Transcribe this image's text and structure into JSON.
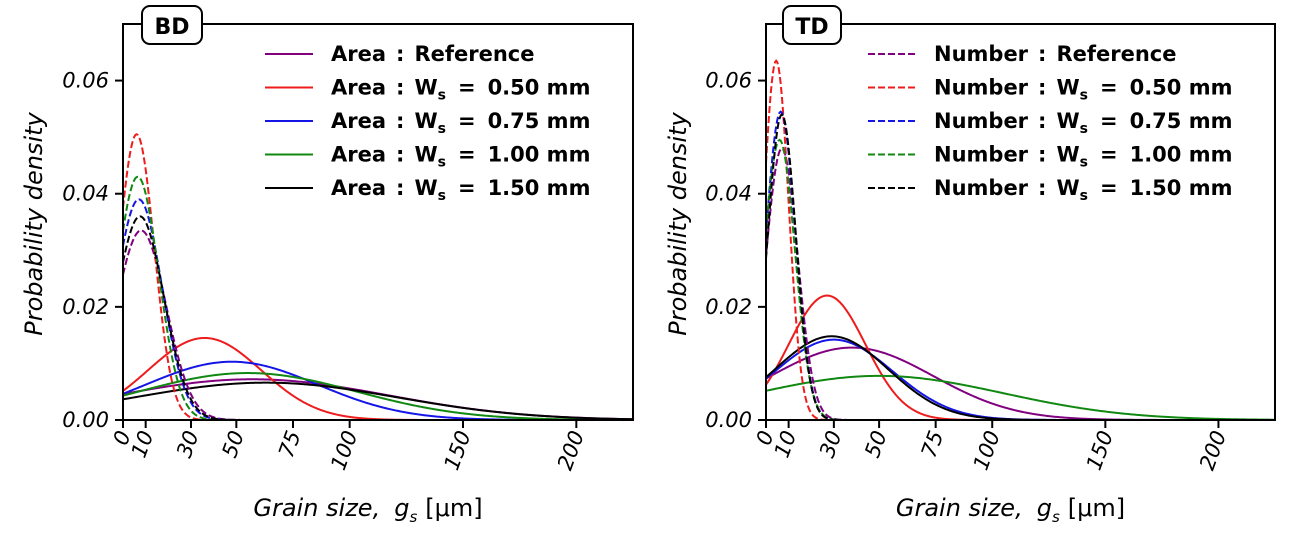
{
  "chart_data": [
    {
      "type": "line",
      "panel_label": "BD",
      "xlabel": "Grain size,",
      "xlabel_symbol": "g",
      "xlabel_subscript": "s",
      "xlabel_unit": "[μm]",
      "ylabel": "Probability density",
      "xlim": [
        0,
        225
      ],
      "ylim": [
        0,
        0.07
      ],
      "xticks": [
        0,
        10,
        30,
        50,
        75,
        100,
        150,
        200
      ],
      "xtick_labels": [
        "0",
        "10",
        "30",
        "50",
        "75",
        "100",
        "150",
        "200"
      ],
      "yticks": [
        0,
        0.02,
        0.04,
        0.06
      ],
      "ytick_labels": [
        "0.00",
        "0.02",
        "0.04",
        "0.06"
      ],
      "legend_position": "top-right",
      "legend": [
        {
          "name": "Area",
          "sep": ":",
          "label": "Reference",
          "sym": "",
          "sub": "",
          "eq": "",
          "val": "",
          "color": "#800080",
          "dash": "solid"
        },
        {
          "name": "Area",
          "sep": ":",
          "label": "",
          "sym": "W",
          "sub": "s",
          "eq": "=",
          "val": "0.50 mm",
          "color": "#ee1c1c",
          "dash": "solid"
        },
        {
          "name": "Area",
          "sep": ":",
          "label": "",
          "sym": "W",
          "sub": "s",
          "eq": "=",
          "val": "0.75 mm",
          "color": "#1515e6",
          "dash": "solid"
        },
        {
          "name": "Area",
          "sep": ":",
          "label": "",
          "sym": "W",
          "sub": "s",
          "eq": "=",
          "val": "1.00 mm",
          "color": "#118811",
          "dash": "solid"
        },
        {
          "name": "Area",
          "sep": ":",
          "label": "",
          "sym": "W",
          "sub": "s",
          "eq": "=",
          "val": "1.50 mm",
          "color": "#000000",
          "dash": "solid"
        }
      ],
      "series": [
        {
          "name": "Area : Reference",
          "style": "solid",
          "color": "#800080",
          "mu": 57,
          "sigma": 60,
          "peak": 0.0072
        },
        {
          "name": "Area : Ws = 0.50 mm",
          "style": "solid",
          "color": "#ee1c1c",
          "mu": 36,
          "sigma": 25,
          "peak": 0.0145
        },
        {
          "name": "Area : Ws = 0.75 mm",
          "style": "solid",
          "color": "#1515e6",
          "mu": 48,
          "sigma": 38,
          "peak": 0.0103
        },
        {
          "name": "Area : Ws = 1.00 mm",
          "style": "solid",
          "color": "#118811",
          "mu": 55,
          "sigma": 48,
          "peak": 0.0083
        },
        {
          "name": "Area : Ws = 1.50 mm",
          "style": "solid",
          "color": "#000000",
          "mu": 63,
          "sigma": 58,
          "peak": 0.0066
        },
        {
          "name": "Number : Reference",
          "style": "dashed",
          "color": "#800080",
          "mu": 8,
          "sigma": 11,
          "peak": 0.0335
        },
        {
          "name": "Number : Ws = 0.50 mm",
          "style": "dashed",
          "color": "#ee1c1c",
          "mu": 6,
          "sigma": 7.8,
          "peak": 0.0505
        },
        {
          "name": "Number : Ws = 0.75 mm",
          "style": "dashed",
          "color": "#1515e6",
          "mu": 7,
          "sigma": 10.2,
          "peak": 0.039
        },
        {
          "name": "Number : Ws = 1.00 mm",
          "style": "dashed",
          "color": "#118811",
          "mu": 6.5,
          "sigma": 9.2,
          "peak": 0.043
        },
        {
          "name": "Number : Ws = 1.50 mm",
          "style": "dashed",
          "color": "#000000",
          "mu": 7.5,
          "sigma": 10.5,
          "peak": 0.036
        }
      ]
    },
    {
      "type": "line",
      "panel_label": "TD",
      "xlabel": "Grain size,",
      "xlabel_symbol": "g",
      "xlabel_subscript": "s",
      "xlabel_unit": "[μm]",
      "ylabel": "Probability density",
      "xlim": [
        0,
        225
      ],
      "ylim": [
        0,
        0.07
      ],
      "xticks": [
        0,
        10,
        30,
        50,
        75,
        100,
        150,
        200
      ],
      "xtick_labels": [
        "0",
        "10",
        "30",
        "50",
        "75",
        "100",
        "150",
        "200"
      ],
      "yticks": [
        0,
        0.02,
        0.04,
        0.06
      ],
      "ytick_labels": [
        "0.00",
        "0.02",
        "0.04",
        "0.06"
      ],
      "legend_position": "top-right",
      "legend": [
        {
          "name": "Number",
          "sep": ":",
          "label": "Reference",
          "sym": "",
          "sub": "",
          "eq": "",
          "val": "",
          "color": "#800080",
          "dash": "dashed"
        },
        {
          "name": "Number",
          "sep": ":",
          "label": "",
          "sym": "W",
          "sub": "s",
          "eq": "=",
          "val": "0.50 mm",
          "color": "#ee1c1c",
          "dash": "dashed"
        },
        {
          "name": "Number",
          "sep": ":",
          "label": "",
          "sym": "W",
          "sub": "s",
          "eq": "=",
          "val": "0.75 mm",
          "color": "#1515e6",
          "dash": "dashed"
        },
        {
          "name": "Number",
          "sep": ":",
          "label": "",
          "sym": "W",
          "sub": "s",
          "eq": "=",
          "val": "1.00 mm",
          "color": "#118811",
          "dash": "dashed"
        },
        {
          "name": "Number",
          "sep": ":",
          "label": "",
          "sym": "W",
          "sub": "s",
          "eq": "=",
          "val": "1.50 mm",
          "color": "#000000",
          "dash": "dashed"
        }
      ],
      "series": [
        {
          "name": "Area : Reference",
          "style": "solid",
          "color": "#800080",
          "mu": 38,
          "sigma": 36,
          "peak": 0.0128
        },
        {
          "name": "Area : Ws = 0.50 mm",
          "style": "solid",
          "color": "#ee1c1c",
          "mu": 27,
          "sigma": 17,
          "peak": 0.022
        },
        {
          "name": "Area : Ws = 0.75 mm",
          "style": "solid",
          "color": "#1515e6",
          "mu": 30,
          "sigma": 26,
          "peak": 0.0142
        },
        {
          "name": "Area : Ws = 1.00 mm",
          "style": "solid",
          "color": "#118811",
          "mu": 50,
          "sigma": 55,
          "peak": 0.0078
        },
        {
          "name": "Area : Ws = 1.50 mm",
          "style": "solid",
          "color": "#000000",
          "mu": 29,
          "sigma": 25,
          "peak": 0.0148
        },
        {
          "name": "Number : Reference",
          "style": "dashed",
          "color": "#800080",
          "mu": 7,
          "sigma": 7,
          "peak": 0.048
        },
        {
          "name": "Number : Ws = 0.50 mm",
          "style": "dashed",
          "color": "#ee1c1c",
          "mu": 4.5,
          "sigma": 5.5,
          "peak": 0.0635
        },
        {
          "name": "Number : Ws = 0.75 mm",
          "style": "dashed",
          "color": "#1515e6",
          "mu": 6.5,
          "sigma": 6.5,
          "peak": 0.0545
        },
        {
          "name": "Number : Ws = 1.00 mm",
          "style": "dashed",
          "color": "#118811",
          "mu": 6,
          "sigma": 6.8,
          "peak": 0.0495
        },
        {
          "name": "Number : Ws = 1.50 mm",
          "style": "dashed",
          "color": "#000000",
          "mu": 7,
          "sigma": 6.2,
          "peak": 0.054
        }
      ]
    }
  ]
}
